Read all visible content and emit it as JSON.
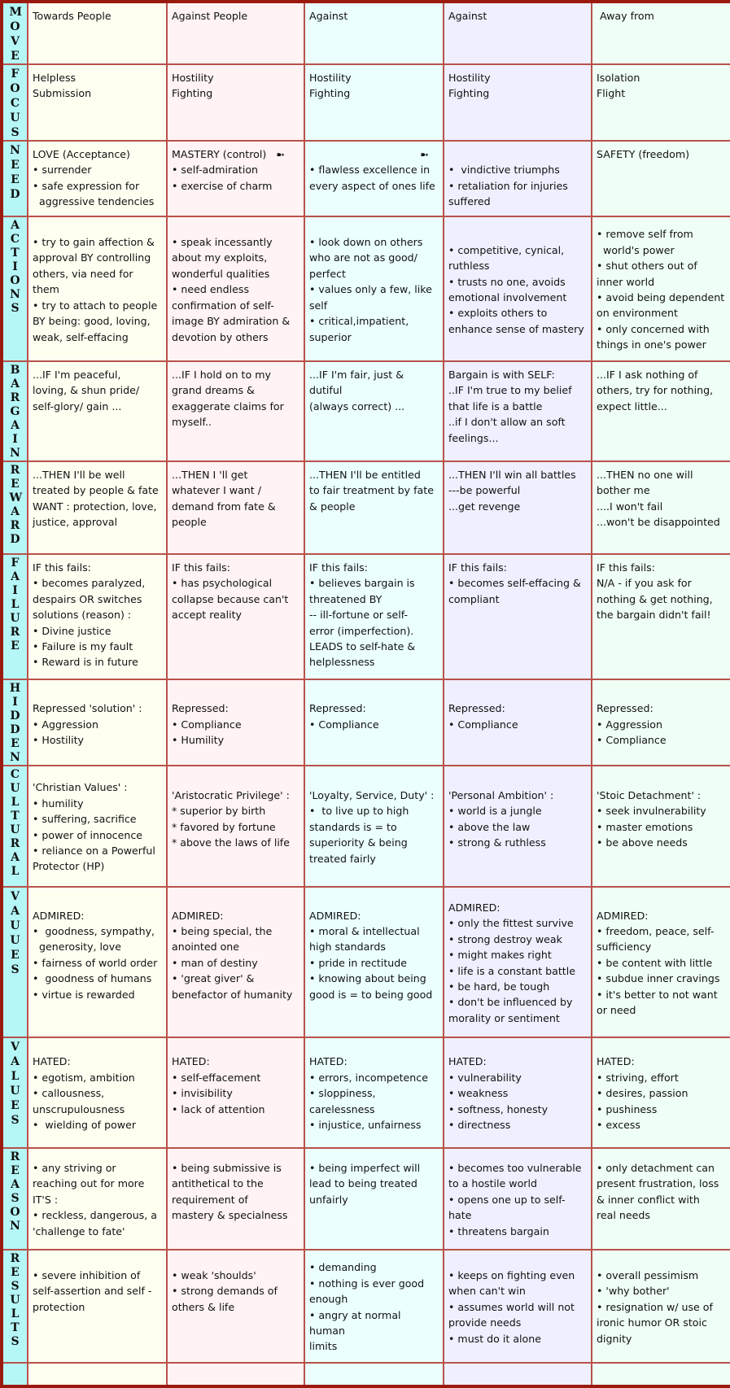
{
  "rows": [
    {
      "label": "MOVE",
      "align": "top",
      "cells": [
        [
          "Towards People"
        ],
        [
          "Against People"
        ],
        [
          "Against"
        ],
        [
          "Against"
        ],
        [
          " Away from"
        ]
      ]
    },
    {
      "label": "FOCUS",
      "align": "top",
      "cells": [
        [
          "Helpless",
          "Submission"
        ],
        [
          "Hostility",
          "Fighting"
        ],
        [
          "Hostility",
          "Fighting"
        ],
        [
          "Hostility",
          "Fighting"
        ],
        [
          "Isolation",
          "Flight"
        ]
      ]
    },
    {
      "label": "NEED",
      "align": "top",
      "cells": [
        [
          "LOVE (Acceptance)",
          "• surrender",
          "• safe expression for",
          "  aggressive tendencies"
        ],
        [
          "MASTERY (control)   ➼",
          "• self-admiration",
          "• exercise of charm"
        ],
        [
          "                                  ➼",
          "• flawless excellence in",
          "every aspect of ones life"
        ],
        [
          "",
          "•  vindictive triumphs",
          "• retaliation for injuries",
          "suffered"
        ],
        [
          "SAFETY (freedom)"
        ]
      ]
    },
    {
      "label": "ACTIONS",
      "align": "middle",
      "cells": [
        [
          "• try to gain affection &",
          "approval BY controlling",
          "others, via need for",
          "them",
          "• try to attach to people",
          "BY being: good, loving,",
          "weak, self-effacing"
        ],
        [
          "• speak incessantly",
          "about my exploits,",
          "wonderful qualities",
          "• need endless",
          "confirmation of self-",
          "image BY admiration &",
          "devotion by others"
        ],
        [
          "• look down on others",
          "who are not as good/",
          "perfect",
          "• values only a few, like",
          "self",
          "• critical,impatient,",
          "superior"
        ],
        [
          "• competitive, cynical,",
          "ruthless",
          "• trusts no one, avoids",
          "emotional involvement",
          "• exploits others to",
          "enhance sense of mastery"
        ],
        [
          "• remove self from",
          "  world's power",
          "• shut others out of",
          "inner world",
          "• avoid being dependent",
          "on environment",
          "• only concerned with",
          "things in one's power"
        ]
      ]
    },
    {
      "label": "BARGAIN",
      "align": "top",
      "cells": [
        [
          "...IF I'm peaceful,",
          "loving, & shun pride/",
          "self-glory/ gain ..."
        ],
        [
          "...IF I hold on to my",
          "grand dreams &",
          "exaggerate claims for",
          "myself.."
        ],
        [
          "...IF I'm fair, just &",
          "dutiful",
          "(always correct) ..."
        ],
        [
          "Bargain is with SELF:",
          "..IF I'm true to my belief",
          "that life is a battle",
          "..if I don't allow an soft",
          "feelings..."
        ],
        [
          "...IF I ask nothing of",
          "others, try for nothing,",
          "expect little..."
        ]
      ]
    },
    {
      "label": "REWARD",
      "align": "top",
      "cells": [
        [
          "...THEN I'll be well",
          "treated by people & fate",
          "WANT : protection, love,",
          "justice, approval"
        ],
        [
          "...THEN I 'll get",
          "whatever I want /",
          "demand from fate &",
          "people"
        ],
        [
          "...THEN I'll be entitled",
          "to fair treatment by fate",
          "& people"
        ],
        [
          "...THEN I'll win all battles",
          "---be powerful",
          "...get revenge"
        ],
        [
          "...THEN no one will",
          "bother me",
          "....I won't fail",
          "...won't be disappointed"
        ]
      ]
    },
    {
      "label": "FAILURE",
      "align": "top",
      "cells": [
        [
          "IF this fails:",
          "• becomes paralyzed,",
          "despairs OR switches",
          "solutions (reason) :",
          "• Divine justice",
          "• Failure is my fault",
          "• Reward is in future"
        ],
        [
          "IF this fails:",
          "• has psychological",
          "collapse because can't",
          "accept reality"
        ],
        [
          "IF this fails:",
          "• believes bargain is",
          "threatened BY",
          "-- ill-fortune or self-",
          "error (imperfection).",
          "LEADS to self-hate &",
          "helplessness"
        ],
        [
          "IF this fails:",
          "• becomes self-effacing &",
          "compliant"
        ],
        [
          "IF this fails:",
          "N/A - if you ask for",
          "nothing & get nothing,",
          "the bargain didn't fail!"
        ]
      ]
    },
    {
      "label": "HIDDEN",
      "align": "top",
      "cells": [
        [
          "",
          "Repressed 'solution' :",
          "• Aggression",
          "• Hostility"
        ],
        [
          "",
          "Repressed:",
          "• Compliance",
          "• Humility"
        ],
        [
          "",
          "Repressed:",
          "• Compliance"
        ],
        [
          "",
          "Repressed:",
          "• Compliance"
        ],
        [
          "",
          "Repressed:",
          "• Aggression",
          "• Compliance"
        ]
      ]
    },
    {
      "label": "CULTURAL",
      "align": "middle",
      "cells": [
        [
          "'Christian Values' :",
          "• humility",
          "• suffering, sacrifice",
          "• power of innocence",
          "• reliance on a Powerful",
          "Protector (HP)"
        ],
        [
          "'Aristocratic Privilege' :",
          "* superior by birth",
          "* favored by fortune",
          "* above the laws of life",
          ""
        ],
        [
          "'Loyalty, Service, Duty' :",
          "•  to live up to high",
          "standards is = to",
          "superiority & being",
          "treated fairly"
        ],
        [
          "'Personal Ambition' :",
          "• world is a jungle",
          "• above the law",
          "• strong & ruthless",
          ""
        ],
        [
          "'Stoic Detachment' :",
          "• seek invulnerability",
          "• master emotions",
          "• be above needs",
          ""
        ]
      ]
    },
    {
      "label": "VAUUES",
      "align": "middle",
      "cells": [
        [
          "ADMIRED:",
          "•  goodness, sympathy,",
          "  generosity, love",
          "• fairness of world order",
          "•  goodness of humans",
          "• virtue is rewarded",
          ""
        ],
        [
          "ADMIRED:",
          "• being special, the",
          "anointed one",
          "• man of destiny",
          "• 'great giver' &",
          "benefactor of humanity",
          ""
        ],
        [
          "ADMIRED:",
          "• moral & intellectual",
          "high standards",
          "• pride in rectitude",
          "• knowing about being",
          "good is = to being good",
          ""
        ],
        [
          "ADMIRED:",
          "• only the fittest survive",
          "• strong destroy weak",
          "• might makes right",
          "• life is a constant battle",
          "• be hard, be tough",
          "• don't be influenced by",
          "morality or sentiment"
        ],
        [
          "ADMIRED:",
          "• freedom, peace, self-",
          "sufficiency",
          "• be content with little",
          "• subdue inner cravings",
          "• it's better to not want",
          "or need"
        ]
      ]
    },
    {
      "label": "VALUES",
      "align": "middle",
      "cells": [
        [
          "HATED:",
          "• egotism, ambition",
          "• callousness,",
          "unscrupulousness",
          "•  wielding of power"
        ],
        [
          "HATED:",
          "• self-effacement",
          "• invisibility",
          "• lack of attention",
          ""
        ],
        [
          "HATED:",
          "• errors, incompetence",
          "• sloppiness,",
          "carelessness",
          "• injustice, unfairness"
        ],
        [
          "HATED:",
          "• vulnerability",
          "• weakness",
          "• softness, honesty",
          "• directness"
        ],
        [
          "HATED:",
          "• striving, effort",
          "• desires, passion",
          "• pushiness",
          "• excess"
        ]
      ]
    },
    {
      "label": "REASON",
      "align": "middle",
      "cells": [
        [
          "• any striving or",
          "reaching out for more",
          "IT'S :",
          "• reckless, dangerous, a",
          "'challenge to fate'"
        ],
        [
          "• being submissive is",
          "antithetical to the",
          "requirement of",
          "mastery & specialness",
          ""
        ],
        [
          "• being imperfect will",
          "lead to being treated",
          "unfairly",
          "",
          ""
        ],
        [
          "• becomes too vulnerable",
          "to a hostile world",
          "• opens one up to self-",
          "hate",
          "• threatens bargain"
        ],
        [
          "• only detachment can",
          "present frustration, loss",
          "& inner conflict with",
          "real needs",
          ""
        ]
      ]
    },
    {
      "label": "RESULTS",
      "align": "middle",
      "cells": [
        [
          "• severe inhibition of",
          "self-assertion and self -",
          "protection",
          "",
          ""
        ],
        [
          "• weak 'shoulds'",
          "• strong demands of",
          "others & life",
          "",
          ""
        ],
        [
          "• demanding",
          "• nothing is ever good",
          "enough",
          "• angry at normal human",
          "limits"
        ],
        [
          "• keeps on fighting even",
          "when can't win",
          "• assumes world will not",
          "provide needs",
          "• must do it alone"
        ],
        [
          "• overall pessimism",
          "• 'why bother'",
          "• resignation w/ use of",
          "ironic humor OR stoic",
          "dignity"
        ]
      ]
    },
    {
      "label": "",
      "align": "top",
      "cells": [
        [],
        [],
        [],
        [],
        []
      ]
    }
  ],
  "colors": {
    "border": "#9b1a10",
    "label_column": "#b5f6f7",
    "columns": [
      "#fffff1",
      "#fff3f3",
      "#ebffff",
      "#efefff",
      "#effff6"
    ]
  }
}
